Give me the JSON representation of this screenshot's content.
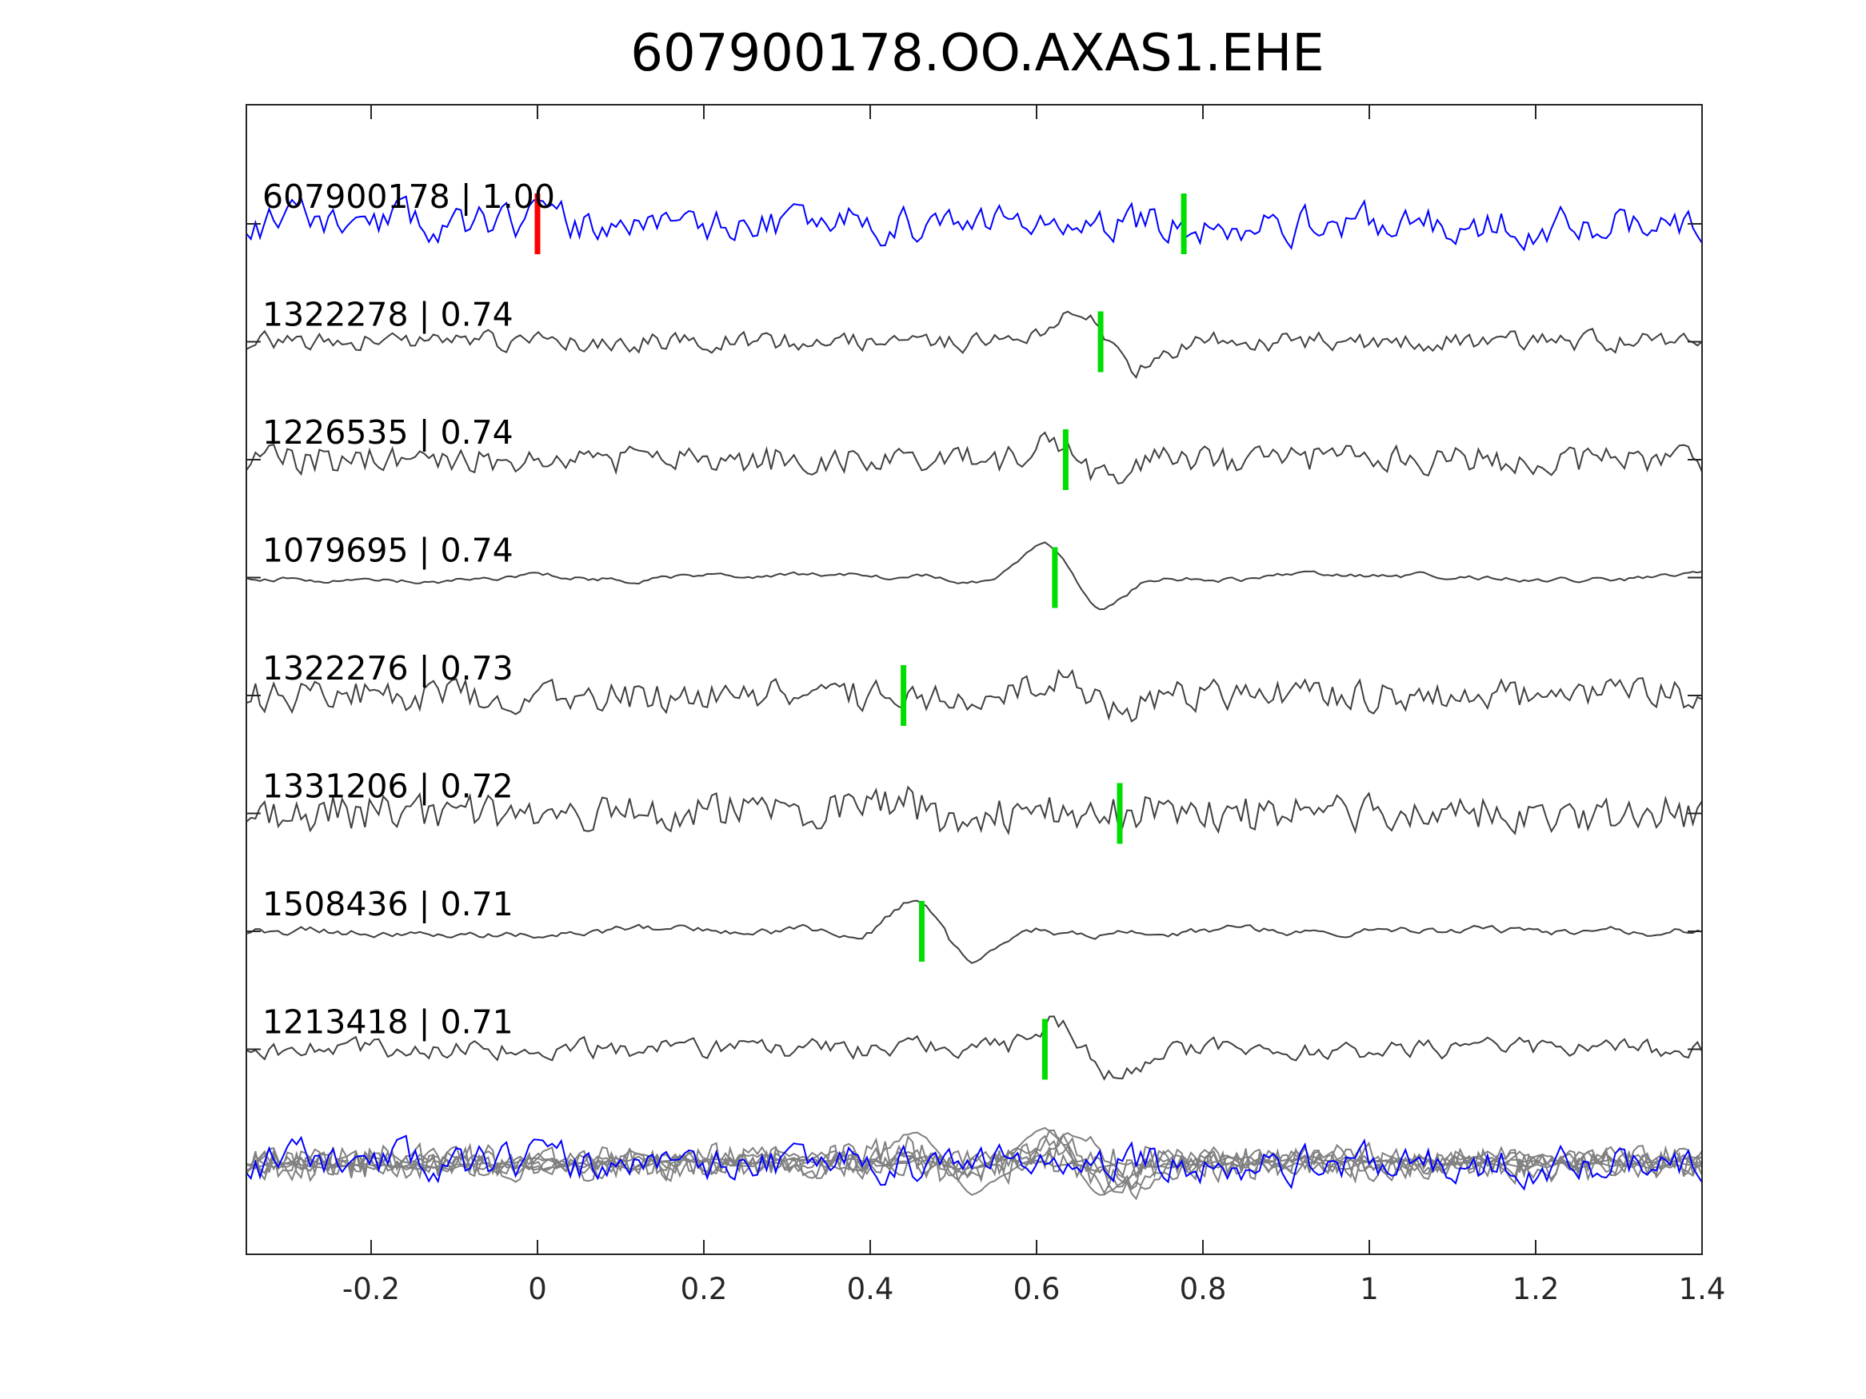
{
  "chart_data": {
    "type": "line",
    "title": "607900178.OO.AXAS1.EHE",
    "xlabel": "",
    "ylabel": "",
    "xlim": [
      -0.35,
      1.4
    ],
    "xticks": [
      -0.2,
      0,
      0.2,
      0.4,
      0.6,
      0.8,
      1,
      1.2,
      1.4
    ],
    "xtick_labels": [
      "-0.2",
      "0",
      "0.2",
      "0.4",
      "0.6",
      "0.8",
      "1",
      "1.2",
      "1.4"
    ],
    "grid": false,
    "colors": {
      "main_trace": "#0000ff",
      "other_traces": "#404040",
      "overlay_traces": "#808080",
      "reference_pick": "#ff0000",
      "picks": "#00dd00"
    },
    "traces": [
      {
        "label": "607900178 | 1.00",
        "main": true,
        "pick": 0.777,
        "ref_pick": 0.0,
        "seed": 11,
        "noise": 0.95,
        "smooth": 0.55
      },
      {
        "label": "1322278 | 0.74",
        "pick": 0.677,
        "seed": 23,
        "noise": 0.45,
        "smooth": 0.4,
        "event": 0.69,
        "event_amp": 1.6
      },
      {
        "label": "1226535 | 0.74",
        "pick": 0.635,
        "seed": 37,
        "noise": 0.55,
        "smooth": 0.25,
        "event": 0.655,
        "event_amp": 1.1
      },
      {
        "label": "1079695 | 0.74",
        "pick": 0.622,
        "seed": 41,
        "noise": 0.22,
        "smooth": 0.88,
        "event": 0.645,
        "event_amp": 1.7
      },
      {
        "label": "1322276 | 0.73",
        "pick": 0.44,
        "seed": 53,
        "noise": 0.65,
        "smooth": 0.3,
        "event": 0.665,
        "event_amp": 1.2
      },
      {
        "label": "1331206 | 0.72",
        "pick": 0.7,
        "seed": 67,
        "noise": 0.7,
        "smooth": 0.2,
        "event": 0.47,
        "event_amp": 0.9
      },
      {
        "label": "1508436 | 0.71",
        "pick": 0.462,
        "seed": 79,
        "noise": 0.3,
        "smooth": 0.8,
        "event": 0.49,
        "event_amp": 1.8
      },
      {
        "label": "1213418 | 0.71",
        "pick": 0.61,
        "seed": 83,
        "noise": 0.45,
        "smooth": 0.5,
        "event": 0.66,
        "event_amp": 1.6
      }
    ]
  }
}
